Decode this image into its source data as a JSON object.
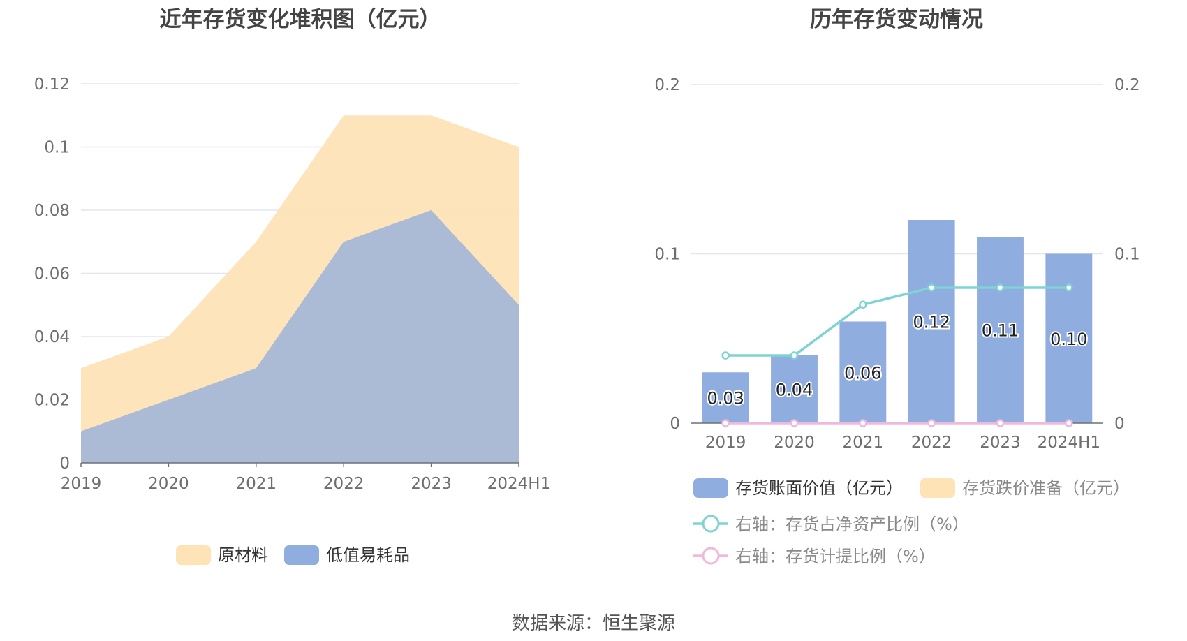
{
  "source": "数据来源：恒生聚源",
  "chart_data": [
    {
      "type": "area",
      "title": "近年存货变化堆积图（亿元）",
      "categories": [
        "2019",
        "2020",
        "2021",
        "2022",
        "2023",
        "2024H1"
      ],
      "stacked": true,
      "series": [
        {
          "name": "低值易耗品",
          "color": "#8fadde",
          "values": [
            0.01,
            0.02,
            0.03,
            0.07,
            0.08,
            0.05
          ]
        },
        {
          "name": "原材料",
          "color": "#fde3b6",
          "values": [
            0.02,
            0.02,
            0.04,
            0.04,
            0.03,
            0.05
          ]
        }
      ],
      "legend_order": [
        "原材料",
        "低值易耗品"
      ],
      "ylim": [
        0,
        0.12
      ],
      "yticks": [
        "0",
        "0.02",
        "0.04",
        "0.06",
        "0.08",
        "0.1",
        "0.12"
      ],
      "grid": true,
      "legend": "bottom"
    },
    {
      "type": "bar",
      "title": "历年存货变动情况",
      "categories": [
        "2019",
        "2020",
        "2021",
        "2022",
        "2023",
        "2024H1"
      ],
      "series": [
        {
          "name": "存货账面价值（亿元）",
          "color": "#8fadde",
          "axis": "left",
          "values": [
            0.03,
            0.04,
            0.06,
            0.12,
            0.11,
            0.1
          ],
          "labels": [
            "0.03",
            "0.04",
            "0.06",
            "0.12",
            "0.11",
            "0.10"
          ]
        },
        {
          "name": "存货跌价准备（亿元）",
          "color": "#fde3b6",
          "axis": "left",
          "values": [
            0,
            0,
            0,
            0,
            0,
            0
          ]
        },
        {
          "name": "右轴：存货占净资产比例（%）",
          "type": "line",
          "color": "#7fd3d3",
          "axis": "right",
          "values": [
            0.04,
            0.04,
            0.07,
            0.08,
            0.08,
            0.08
          ]
        },
        {
          "name": "右轴：存货计提比例（%）",
          "type": "line",
          "color": "#f0b8dc",
          "axis": "right",
          "values": [
            0,
            0,
            0,
            0,
            0,
            0
          ]
        }
      ],
      "ylim": [
        0,
        0.2
      ],
      "yticks": [
        "0",
        "0.1",
        "0.2"
      ],
      "y2lim": [
        0,
        0.2
      ],
      "y2ticks": [
        "0",
        "0.1",
        "0.2"
      ],
      "grid": true,
      "legend": "bottom"
    }
  ]
}
